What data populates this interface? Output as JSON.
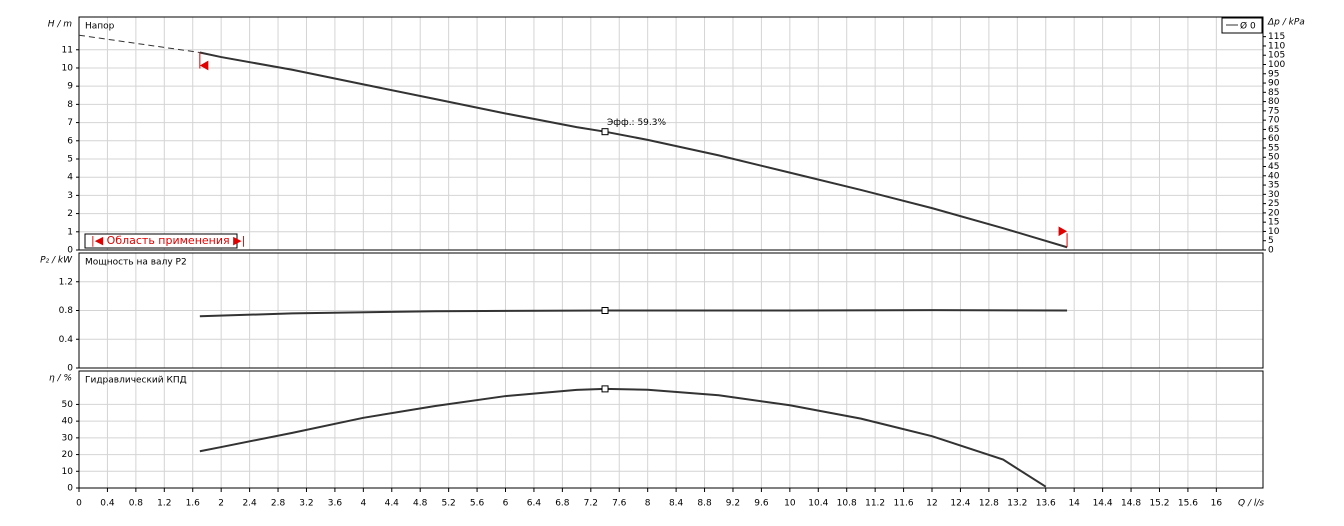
{
  "chart_data": [
    {
      "type": "line",
      "title": "Напор",
      "ylabel": "H / m",
      "y2label": "Δp / kPa",
      "ylim": [
        0,
        12.8
      ],
      "yticks": [
        0,
        1,
        2,
        3,
        4,
        5,
        6,
        7,
        8,
        9,
        10,
        11
      ],
      "y2lim": [
        0,
        125.6
      ],
      "y2ticks": [
        0,
        5,
        10,
        15,
        20,
        25,
        30,
        35,
        40,
        45,
        50,
        55,
        60,
        65,
        70,
        75,
        80,
        85,
        90,
        95,
        100,
        105,
        110,
        115
      ],
      "series": [
        {
          "name": "Ø 0",
          "color": "#333333",
          "x": [
            1.7,
            2,
            3,
            4,
            5,
            6,
            7,
            7.4,
            8,
            9,
            10,
            11,
            12,
            13,
            13.9
          ],
          "values": [
            10.85,
            10.6,
            9.9,
            9.1,
            8.3,
            7.5,
            6.75,
            6.5,
            6.05,
            5.2,
            4.25,
            3.3,
            2.3,
            1.2,
            0.15
          ]
        },
        {
          "color": "#333333",
          "dashed": true,
          "x": [
            0,
            1.7
          ],
          "values": [
            11.8,
            10.85
          ]
        }
      ],
      "operating_point": {
        "x": 7.4,
        "y": 6.5,
        "label": "Эфф.: 59.3%"
      },
      "range": {
        "label": "|◀ Область применения ▶|",
        "xmin": 1.7,
        "xmax": 13.9,
        "color": "#e00000"
      },
      "grid": true
    },
    {
      "type": "line",
      "title": "Мощность на валу P2",
      "ylabel": "P₂ / kW",
      "ylim": [
        0,
        1.6
      ],
      "yticks": [
        0,
        0.4,
        0.8,
        1.2
      ],
      "series": [
        {
          "color": "#333333",
          "x": [
            1.7,
            3,
            5,
            7.4,
            10,
            12,
            13.9
          ],
          "values": [
            0.72,
            0.76,
            0.79,
            0.8,
            0.8,
            0.805,
            0.8
          ]
        }
      ],
      "operating_point": {
        "x": 7.4,
        "y": 0.8
      },
      "grid": true
    },
    {
      "type": "line",
      "title": "Гидравлический КПД",
      "ylabel": "η / %",
      "xlabel": "Q / l/s",
      "ylim": [
        0,
        70
      ],
      "yticks": [
        0,
        10,
        20,
        30,
        40,
        50
      ],
      "xlim": [
        0,
        16.6
      ],
      "xticks": [
        0,
        0.4,
        0.8,
        1.2,
        1.6,
        2,
        2.4,
        2.8,
        3.2,
        3.6,
        4,
        4.4,
        4.8,
        5.2,
        5.6,
        6,
        6.4,
        6.8,
        7.2,
        7.6,
        8,
        8.4,
        8.8,
        9.2,
        9.6,
        10,
        10.4,
        10.8,
        11.2,
        11.6,
        12,
        12.4,
        12.8,
        13.2,
        13.6,
        14,
        14.4,
        14.8,
        15.2,
        15.6,
        16
      ],
      "series": [
        {
          "color": "#333333",
          "x": [
            1.7,
            2,
            3,
            4,
            5,
            6,
            7,
            7.4,
            8,
            9,
            10,
            11,
            12,
            13,
            13.6
          ],
          "values": [
            22,
            24.5,
            33,
            42,
            49,
            55,
            58.7,
            59.3,
            58.8,
            55.5,
            49.5,
            41.5,
            31,
            17,
            0.8
          ]
        }
      ],
      "operating_point": {
        "x": 7.4,
        "y": 59.3
      },
      "grid": true
    }
  ]
}
